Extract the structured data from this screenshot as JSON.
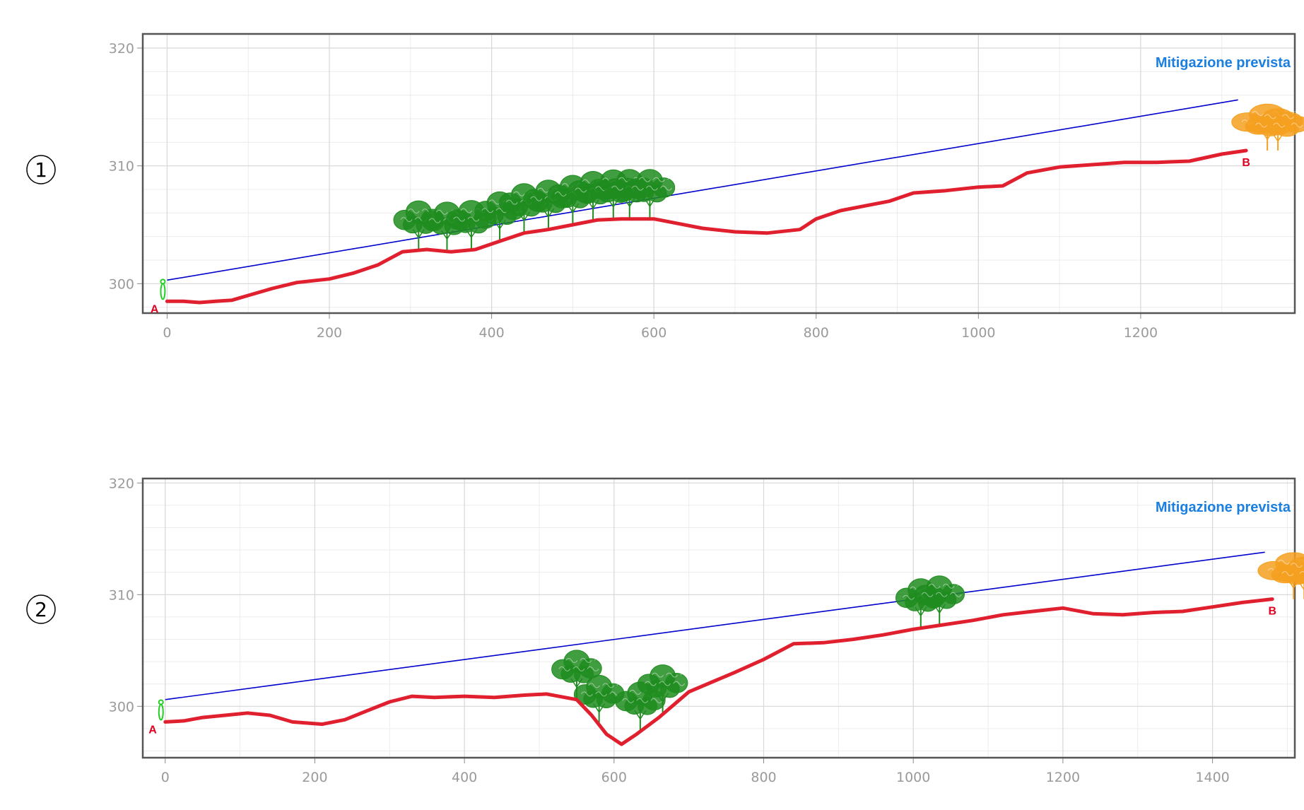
{
  "colors": {
    "terrain": "#e0202e",
    "sightline": "#0000cc",
    "label_mitigation": "#1a7fe0",
    "label_point": "#e00020",
    "tree_green": "#1e8c1e",
    "tree_orange": "#f5a020",
    "observer": "#20d020",
    "grid": "#d8d8d8",
    "frame": "#555555",
    "tick_text": "#9a9a9a"
  },
  "chart_data": [
    {
      "panel_number": "1",
      "type": "line",
      "title": "",
      "xlabel": "",
      "ylabel": "",
      "xlim": [
        -30,
        1390
      ],
      "ylim": [
        297.5,
        321.2
      ],
      "x_ticks": [
        0,
        200,
        400,
        600,
        800,
        1000,
        1200
      ],
      "y_ticks": [
        300,
        310,
        320
      ],
      "grid": true,
      "annotation": "Mitigazione prevista",
      "start_label": "A",
      "end_label": "B",
      "series": [
        {
          "role": "terrain profile",
          "x": [
            0,
            20,
            40,
            60,
            80,
            100,
            130,
            160,
            200,
            230,
            260,
            290,
            320,
            350,
            380,
            410,
            440,
            470,
            500,
            530,
            560,
            600,
            630,
            660,
            700,
            740,
            780,
            800,
            830,
            860,
            890,
            920,
            960,
            1000,
            1030,
            1060,
            1100,
            1140,
            1180,
            1220,
            1260,
            1300,
            1330
          ],
          "y": [
            298.5,
            298.5,
            298.4,
            298.5,
            298.6,
            299.0,
            299.6,
            300.1,
            300.4,
            300.9,
            301.6,
            302.7,
            302.9,
            302.7,
            302.9,
            303.6,
            304.3,
            304.6,
            305.0,
            305.4,
            305.5,
            305.5,
            305.1,
            304.7,
            304.4,
            304.3,
            304.6,
            305.5,
            306.2,
            306.6,
            307.0,
            307.7,
            307.9,
            308.2,
            308.3,
            309.4,
            309.9,
            310.1,
            310.3,
            310.3,
            310.4,
            311.0,
            311.3
          ]
        },
        {
          "role": "line of sight",
          "x": [
            0,
            1320
          ],
          "y": [
            300.3,
            315.6
          ]
        }
      ],
      "tree_groups": [
        {
          "color": "green",
          "x": [
            310,
            345,
            375,
            410,
            440,
            470,
            500,
            525,
            550,
            570,
            595
          ]
        },
        {
          "color": "orange",
          "x": [
            1330
          ]
        }
      ],
      "observer_x": 0
    },
    {
      "panel_number": "2",
      "type": "line",
      "title": "",
      "xlabel": "",
      "ylabel": "",
      "xlim": [
        -30,
        1510
      ],
      "ylim": [
        295.4,
        320.4
      ],
      "x_ticks": [
        0,
        200,
        400,
        600,
        800,
        1000,
        1200,
        1400
      ],
      "y_ticks": [
        300,
        310,
        320
      ],
      "grid": true,
      "annotation": "Mitigazione prevista",
      "start_label": "A",
      "end_label": "B",
      "series": [
        {
          "role": "terrain profile",
          "x": [
            0,
            25,
            50,
            80,
            110,
            140,
            170,
            210,
            240,
            270,
            300,
            330,
            360,
            400,
            440,
            480,
            510,
            550,
            570,
            590,
            610,
            630,
            660,
            700,
            760,
            800,
            840,
            880,
            920,
            960,
            1000,
            1040,
            1080,
            1120,
            1160,
            1200,
            1240,
            1280,
            1320,
            1360,
            1400,
            1440,
            1480
          ],
          "y": [
            298.6,
            298.7,
            299.0,
            299.2,
            299.4,
            299.2,
            298.6,
            298.4,
            298.8,
            299.6,
            300.4,
            300.9,
            300.8,
            300.9,
            300.8,
            301.0,
            301.1,
            300.6,
            299.2,
            297.5,
            296.6,
            297.5,
            299.0,
            301.3,
            303.0,
            304.2,
            305.6,
            305.7,
            306.0,
            306.4,
            306.9,
            307.3,
            307.7,
            308.2,
            308.5,
            308.8,
            308.3,
            308.2,
            308.4,
            308.5,
            308.9,
            309.3,
            309.6
          ]
        },
        {
          "role": "line of sight",
          "x": [
            0,
            1470
          ],
          "y": [
            300.6,
            313.8
          ]
        }
      ],
      "tree_groups": [
        {
          "color": "green",
          "x": [
            550,
            580,
            635,
            665
          ]
        },
        {
          "color": "green",
          "x": [
            1010,
            1035
          ]
        },
        {
          "color": "orange",
          "x": [
            1480
          ]
        }
      ],
      "observer_x": 0
    }
  ]
}
